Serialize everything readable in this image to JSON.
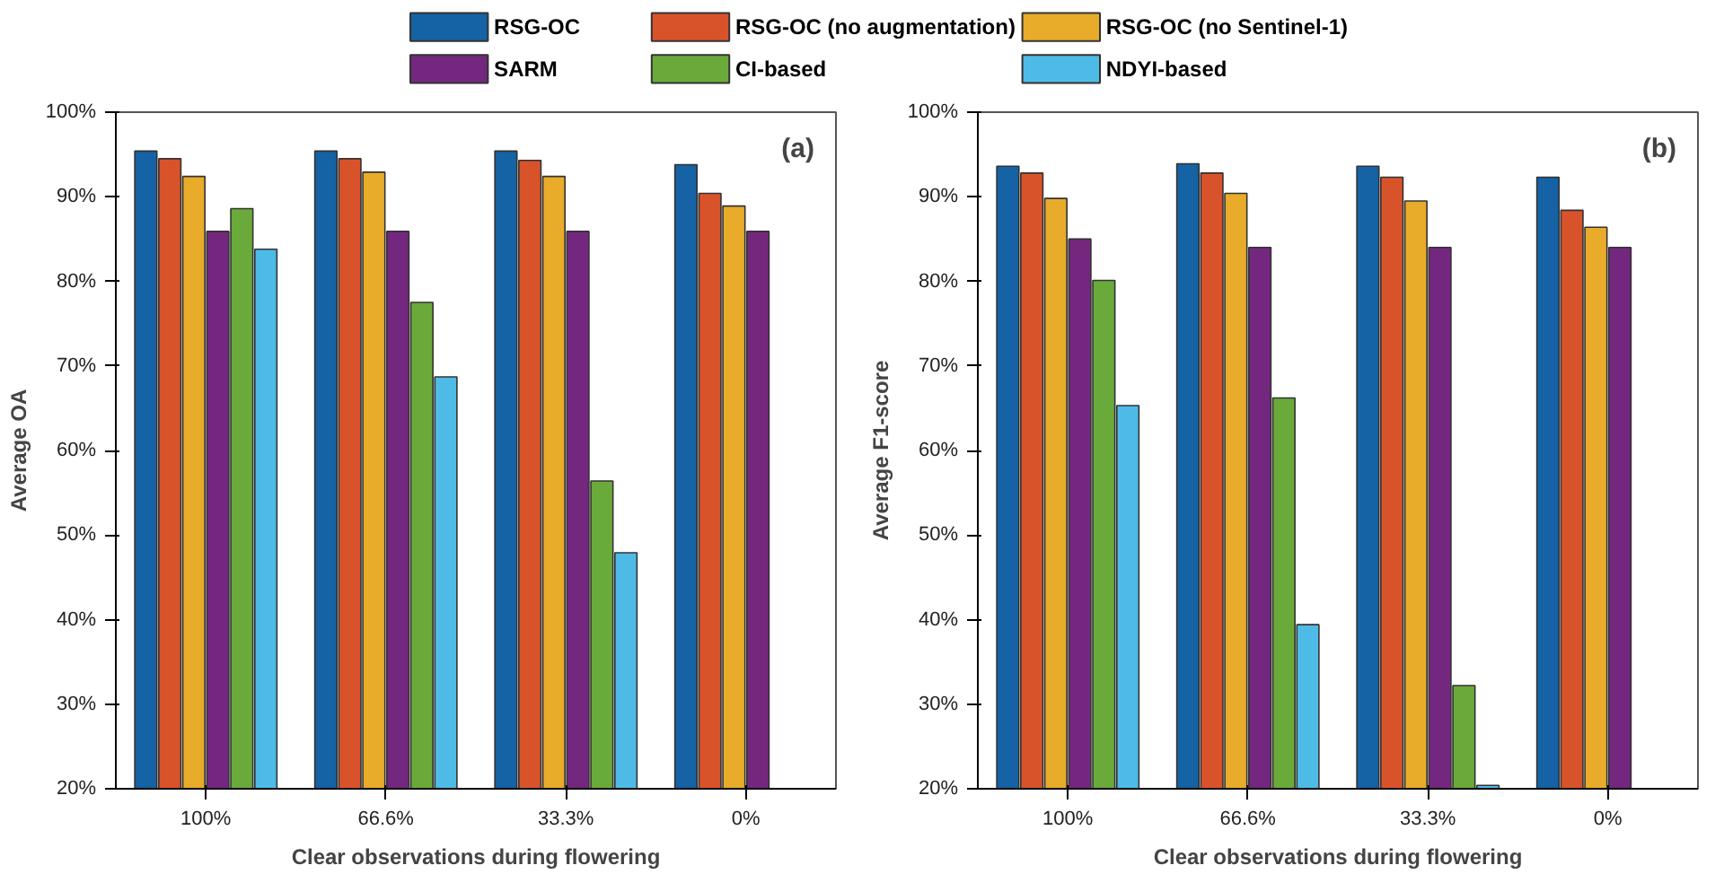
{
  "chart_data": [
    {
      "type": "bar",
      "ylabel": "Average OA",
      "xlabel": "Clear observations during flowering",
      "annotations": [
        "(a)"
      ],
      "categories": [
        "100%",
        "66.6%",
        "33.3%",
        "0%"
      ],
      "series": [
        {
          "name": "RSG-OC",
          "color": "#1562a4",
          "values": [
            95.4,
            95.4,
            95.4,
            93.8
          ]
        },
        {
          "name": "RSG-OC (no augmentation)",
          "color": "#d9532a",
          "values": [
            94.5,
            94.5,
            94.3,
            90.4
          ]
        },
        {
          "name": "RSG-OC (no Sentinel-1)",
          "color": "#e8ac2a",
          "values": [
            92.4,
            92.9,
            92.4,
            88.9
          ]
        },
        {
          "name": "SARM",
          "color": "#74277f",
          "values": [
            85.9,
            85.9,
            85.9,
            85.9
          ]
        },
        {
          "name": "CI-based",
          "color": "#6aaa3a",
          "values": [
            88.6,
            77.5,
            56.4,
            null
          ]
        },
        {
          "name": "NDYI-based",
          "color": "#4ebbe6",
          "values": [
            83.8,
            68.7,
            47.9,
            null
          ]
        }
      ],
      "ylim": [
        20,
        100
      ],
      "yticks": [
        {
          "value": 20,
          "label": "20%"
        },
        {
          "value": 30,
          "label": "30%"
        },
        {
          "value": 40,
          "label": "40%"
        },
        {
          "value": 50,
          "label": "50%"
        },
        {
          "value": 60,
          "label": "60%"
        },
        {
          "value": 70,
          "label": "70%"
        },
        {
          "value": 80,
          "label": "80%"
        },
        {
          "value": 90,
          "label": "90%"
        },
        {
          "value": 100,
          "label": "100%"
        }
      ],
      "legend": "top",
      "grid": false
    },
    {
      "type": "bar",
      "ylabel": "Average F1-score",
      "xlabel": "Clear observations during flowering",
      "annotations": [
        "(b)"
      ],
      "categories": [
        "100%",
        "66.6%",
        "33.3%",
        "0%"
      ],
      "series": [
        {
          "color": "#1562a4",
          "values": [
            93.6,
            93.9,
            93.6,
            92.3
          ]
        },
        {
          "color": "#d9532a",
          "values": [
            92.8,
            92.8,
            92.3,
            88.4
          ]
        },
        {
          "color": "#e8ac2a",
          "values": [
            89.8,
            90.4,
            89.5,
            86.4
          ]
        },
        {
          "color": "#74277f",
          "values": [
            85.0,
            84.0,
            84.0,
            84.0
          ]
        },
        {
          "color": "#6aaa3a",
          "values": [
            80.1,
            66.2,
            32.2,
            null
          ]
        },
        {
          "color": "#4ebbe6",
          "values": [
            65.3,
            39.4,
            20.4,
            null
          ]
        }
      ],
      "ylim": [
        20,
        100
      ],
      "yticks": [
        {
          "value": 20,
          "label": "20%"
        },
        {
          "value": 30,
          "label": "30%"
        },
        {
          "value": 40,
          "label": "40%"
        },
        {
          "value": 50,
          "label": "50%"
        },
        {
          "value": 60,
          "label": "60%"
        },
        {
          "value": 70,
          "label": "70%"
        },
        {
          "value": 80,
          "label": "80%"
        },
        {
          "value": 90,
          "label": "90%"
        },
        {
          "value": 100,
          "label": "100%"
        }
      ],
      "grid": false
    }
  ]
}
